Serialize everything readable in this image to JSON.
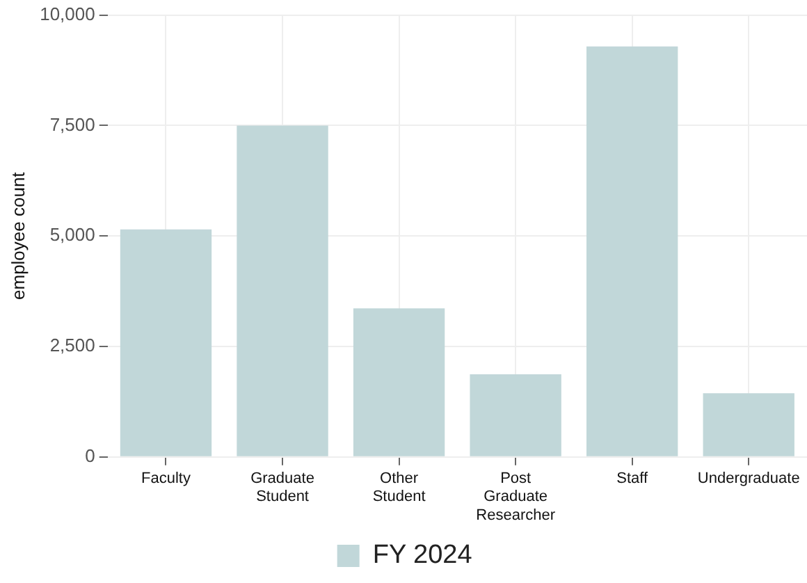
{
  "chart_data": {
    "type": "bar",
    "ylabel": "employee count",
    "categories": [
      "Faculty",
      "Graduate Student",
      "Other Student",
      "Post Graduate Researcher",
      "Staff",
      "Undergraduate"
    ],
    "series": [
      {
        "name": "FY 2024",
        "color": "#c1d7d9",
        "values": [
          5150,
          7500,
          3360,
          1870,
          9290,
          1440
        ]
      }
    ],
    "ylim": [
      0,
      10000
    ],
    "yticks": [
      0,
      {
        "value": 2500,
        "label": "2,500"
      },
      {
        "value": 5000,
        "label": "5,000"
      },
      {
        "value": 7500,
        "label": "7,500"
      },
      {
        "value": 10000,
        "label": "10,000"
      }
    ],
    "grid": true,
    "legend": "bottom"
  }
}
